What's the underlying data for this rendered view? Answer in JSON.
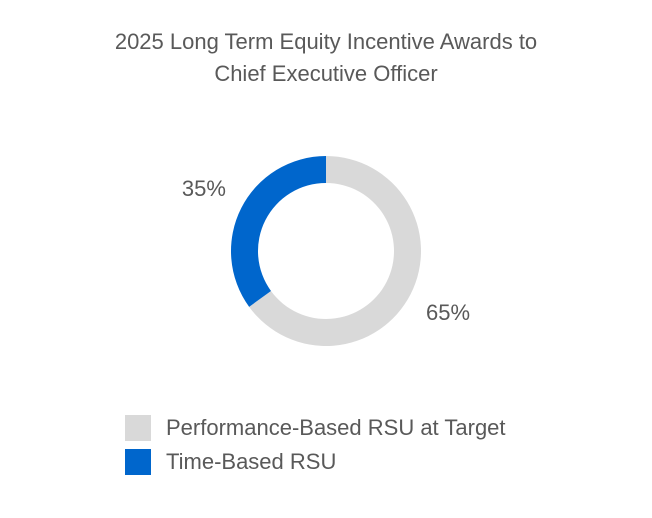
{
  "chart_data": {
    "type": "pie",
    "title_lines": [
      "2025 Long Term Equity Incentive Awards to",
      "Chief Executive Officer"
    ],
    "donut": true,
    "slices": [
      {
        "name": "Performance-Based RSU at Target",
        "value": 65,
        "label": "65%",
        "color": "#d9d9d9"
      },
      {
        "name": "Time-Based RSU",
        "value": 35,
        "label": "35%",
        "color": "#0066cc"
      }
    ],
    "legend_position": "bottom",
    "start": "top",
    "direction": "clockwise"
  }
}
